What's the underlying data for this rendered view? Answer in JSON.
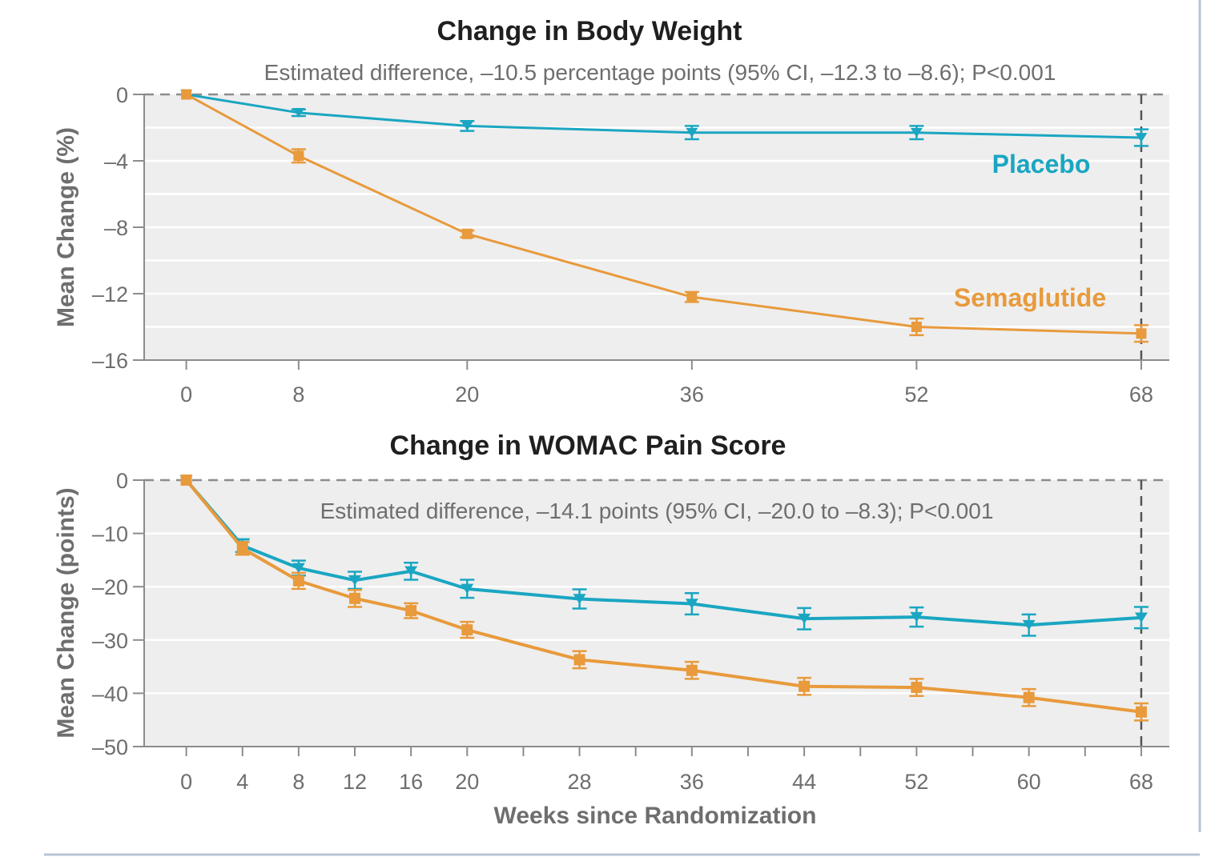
{
  "chart_data": [
    {
      "type": "line",
      "title": "Change in Body Weight",
      "annotation": "Estimated difference, –10.5 percentage points (95% CI, –12.3 to –8.6); P<0.001",
      "xlabel": "",
      "ylabel": "Mean Change (%)",
      "x": [
        0,
        8,
        20,
        36,
        52,
        68
      ],
      "x_tick_labels": [
        "0",
        "8",
        "20",
        "36",
        "52",
        "68"
      ],
      "y_ticks": [
        0,
        -4,
        -8,
        -12,
        -16
      ],
      "y_tick_labels": [
        "0",
        "–4",
        "–8",
        "–12",
        "–16"
      ],
      "ylim": [
        -16,
        0
      ],
      "xlim": [
        -3,
        70
      ],
      "series": [
        {
          "name": "Placebo",
          "color": "#1aa6c2",
          "marker": "triangle-down",
          "values": [
            0,
            -1.1,
            -1.9,
            -2.3,
            -2.3,
            -2.6
          ],
          "error": [
            0,
            0.2,
            0.3,
            0.4,
            0.4,
            0.5
          ]
        },
        {
          "name": "Semaglutide",
          "color": "#e89a3c",
          "marker": "square",
          "values": [
            0,
            -3.7,
            -8.4,
            -12.2,
            -14.0,
            -14.4
          ],
          "error": [
            0,
            0.4,
            0.2,
            0.3,
            0.5,
            0.5
          ]
        }
      ]
    },
    {
      "type": "line",
      "title": "Change in WOMAC Pain Score",
      "annotation": "Estimated difference, –14.1 points (95% CI, –20.0 to –8.3); P<0.001",
      "xlabel": "Weeks since Randomization",
      "ylabel": "Mean Change (points)",
      "x": [
        0,
        4,
        8,
        12,
        16,
        20,
        28,
        36,
        44,
        52,
        60,
        68
      ],
      "x_tick_labels": [
        "0",
        "4",
        "8",
        "12",
        "16",
        "20",
        "28",
        "36",
        "44",
        "52",
        "60",
        "68"
      ],
      "y_ticks": [
        0,
        -10,
        -20,
        -30,
        -40,
        -50
      ],
      "y_tick_labels": [
        "0",
        "–10",
        "–20",
        "–30",
        "–40",
        "–50"
      ],
      "ylim": [
        -50,
        0
      ],
      "xlim": [
        -3,
        70
      ],
      "series": [
        {
          "name": "Placebo",
          "color": "#1aa6c2",
          "marker": "triangle-down",
          "values": [
            0,
            -12.3,
            -16.5,
            -18.8,
            -17.1,
            -20.4,
            -22.3,
            -23.2,
            -26.0,
            -25.7,
            -27.2,
            -25.8
          ],
          "error": [
            0,
            1.2,
            1.4,
            1.6,
            1.6,
            1.7,
            1.8,
            2.0,
            2.0,
            1.8,
            2.0,
            2.0
          ]
        },
        {
          "name": "Semaglutide",
          "color": "#e89a3c",
          "marker": "square",
          "values": [
            0,
            -12.8,
            -18.9,
            -22.2,
            -24.5,
            -28.1,
            -33.7,
            -35.7,
            -38.7,
            -38.9,
            -40.8,
            -43.5
          ],
          "error": [
            0,
            1.2,
            1.5,
            1.6,
            1.4,
            1.5,
            1.6,
            1.6,
            1.6,
            1.6,
            1.6,
            1.6
          ]
        }
      ]
    }
  ]
}
